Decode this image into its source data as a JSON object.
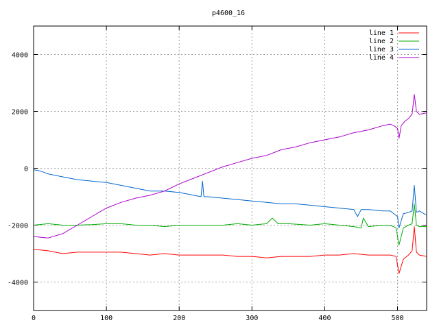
{
  "chart_data": {
    "type": "line",
    "title": "p4600_16",
    "xlabel": "",
    "ylabel": "",
    "xlim": [
      0,
      540
    ],
    "ylim": [
      -5000,
      5000
    ],
    "xticks": [
      0,
      100,
      200,
      300,
      400,
      500
    ],
    "yticks": [
      -4000,
      -2000,
      0,
      2000,
      4000
    ],
    "grid": true,
    "legend_position": "top-right",
    "series": [
      {
        "name": "line 1",
        "color": "#ff0000",
        "x": [
          0,
          20,
          40,
          60,
          80,
          100,
          120,
          140,
          160,
          180,
          200,
          220,
          240,
          260,
          280,
          300,
          320,
          340,
          360,
          380,
          400,
          420,
          440,
          460,
          480,
          490,
          498,
          502,
          508,
          515,
          520,
          523,
          526,
          530,
          540
        ],
        "y": [
          -2850,
          -2900,
          -3000,
          -2950,
          -2950,
          -2950,
          -2950,
          -3000,
          -3050,
          -3000,
          -3050,
          -3050,
          -3050,
          -3050,
          -3100,
          -3100,
          -3150,
          -3100,
          -3100,
          -3100,
          -3050,
          -3050,
          -3000,
          -3050,
          -3050,
          -3050,
          -3100,
          -3700,
          -3200,
          -3050,
          -2900,
          -2050,
          -2950,
          -3050,
          -3100
        ]
      },
      {
        "name": "line 2",
        "color": "#00aa00",
        "x": [
          0,
          20,
          40,
          60,
          80,
          100,
          120,
          140,
          160,
          180,
          200,
          220,
          240,
          260,
          280,
          300,
          320,
          328,
          336,
          350,
          380,
          400,
          420,
          440,
          450,
          453,
          460,
          480,
          490,
          498,
          502,
          508,
          515,
          520,
          523,
          526,
          530,
          540
        ],
        "y": [
          -2000,
          -1950,
          -2000,
          -2000,
          -1980,
          -1950,
          -1950,
          -2000,
          -2000,
          -2050,
          -2000,
          -2000,
          -2000,
          -2000,
          -1950,
          -2000,
          -1950,
          -1750,
          -1950,
          -1950,
          -2000,
          -1950,
          -2000,
          -2050,
          -2100,
          -1750,
          -2050,
          -2000,
          -2000,
          -2100,
          -2700,
          -2100,
          -2000,
          -1950,
          -1250,
          -2000,
          -2050,
          -2050
        ]
      },
      {
        "name": "line 3",
        "color": "#0066cc",
        "x": [
          0,
          10,
          20,
          40,
          60,
          80,
          100,
          120,
          140,
          160,
          180,
          200,
          220,
          230,
          232,
          234,
          240,
          260,
          280,
          300,
          320,
          340,
          360,
          380,
          400,
          420,
          440,
          445,
          450,
          460,
          480,
          490,
          495,
          500,
          502,
          508,
          515,
          520,
          523,
          526,
          530,
          540
        ],
        "y": [
          -50,
          -100,
          -200,
          -300,
          -400,
          -450,
          -500,
          -600,
          -700,
          -800,
          -800,
          -850,
          -950,
          -1000,
          -450,
          -1000,
          -1000,
          -1050,
          -1100,
          -1150,
          -1200,
          -1250,
          -1250,
          -1300,
          -1350,
          -1400,
          -1450,
          -1700,
          -1450,
          -1450,
          -1500,
          -1500,
          -1600,
          -1700,
          -2100,
          -1600,
          -1550,
          -1500,
          -600,
          -1550,
          -1500,
          -1650
        ]
      },
      {
        "name": "line 4",
        "color": "#aa00cc",
        "x": [
          0,
          20,
          40,
          60,
          80,
          100,
          120,
          140,
          160,
          180,
          200,
          220,
          240,
          260,
          280,
          300,
          320,
          340,
          360,
          380,
          400,
          420,
          440,
          460,
          480,
          490,
          495,
          500,
          502,
          505,
          510,
          515,
          520,
          523,
          526,
          530,
          540
        ],
        "y": [
          -2400,
          -2450,
          -2300,
          -2000,
          -1700,
          -1400,
          -1200,
          -1050,
          -950,
          -800,
          -550,
          -350,
          -150,
          50,
          200,
          350,
          450,
          650,
          750,
          900,
          1000,
          1100,
          1250,
          1350,
          1500,
          1550,
          1500,
          1400,
          1050,
          1500,
          1650,
          1750,
          1900,
          2600,
          2000,
          1900,
          1950
        ]
      }
    ]
  }
}
